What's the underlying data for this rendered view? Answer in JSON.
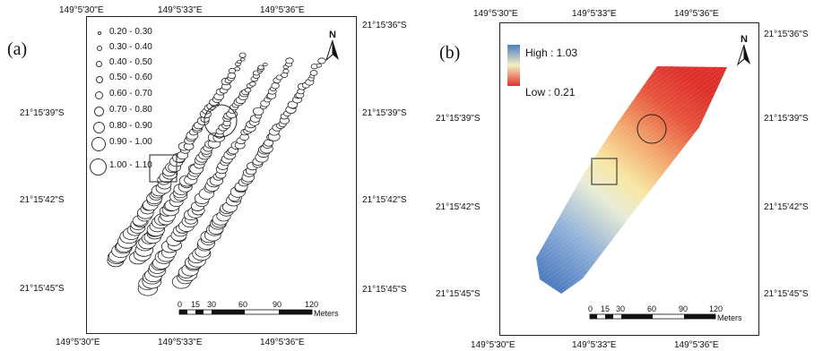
{
  "panel_a": {
    "label": "(a)",
    "coords_top": [
      "149°5'30\"E",
      "149°5'33\"E",
      "149°5'36\"E"
    ],
    "coords_bottom": [
      "149°5'30\"E",
      "149°5'33\"E",
      "149°5'36\"E"
    ],
    "coords_left": [
      "21°15'39\"S",
      "21°15'42\"S",
      "21°15'45\"S"
    ],
    "coords_right": [
      "21°15'36\"S",
      "21°15'39\"S",
      "21°15'42\"S",
      "21°15'45\"S"
    ],
    "legend": [
      "0.20 - 0.30",
      "0.30 - 0.40",
      "0.40 - 0.50",
      "0.50 - 0.60",
      "0.60 - 0.70",
      "0.70 - 0.80",
      "0.80 - 0.90",
      "0.90 - 1.00",
      "1.00 - 1.10"
    ],
    "north": "N",
    "scale": {
      "ticks": [
        "0",
        "15",
        "30",
        "60",
        "90",
        "120"
      ],
      "unit": "Meters"
    }
  },
  "panel_b": {
    "label": "(b)",
    "coords_top": [
      "149°5'30\"E",
      "149°5'33\"E",
      "149°5'36\"E"
    ],
    "coords_bottom": [
      "149°5'30\"E",
      "149°5'33\"E",
      "149°5'36\"E"
    ],
    "coords_left": [
      "21°15'39\"S",
      "21°15'42\"S",
      "21°15'45\"S"
    ],
    "coords_right": [
      "21°15'36\"S",
      "21°15'39\"S",
      "21°15'42\"S",
      "21°15'45\"S"
    ],
    "legend_high": "High : 1.03",
    "legend_low": "Low : 0.21",
    "north": "N",
    "scale": {
      "ticks": [
        "0",
        "15",
        "30",
        "60",
        "90",
        "120"
      ],
      "unit": "Meters"
    }
  },
  "colors": {
    "high": "#4f7dc0",
    "mid": "#f4ecb0",
    "low": "#e0332c",
    "frame": "#222222"
  }
}
